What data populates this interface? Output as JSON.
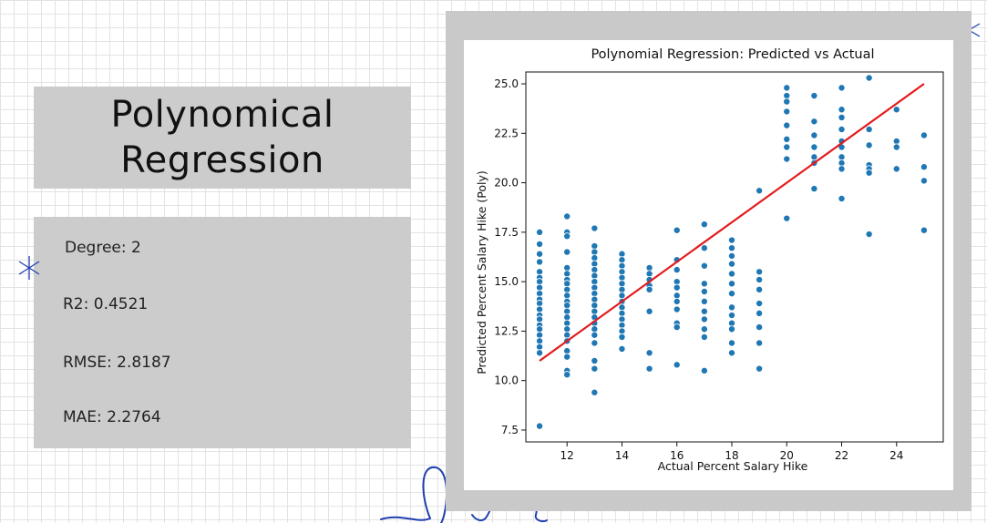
{
  "slide": {
    "title_line1": "Polynomical",
    "title_line2": "Regression"
  },
  "metrics": {
    "degree": "Degree: 2",
    "r2": "R2: 0.4521",
    "rmse": "RMSE: 2.8187",
    "mae": "MAE: 2.2764"
  },
  "colors": {
    "card": "#cccccc",
    "point": "#1f77b4",
    "fit_line": "#e31a1c",
    "accent": "#1f3fae"
  },
  "chart_data": {
    "type": "scatter",
    "title": "Polynomial Regression: Predicted vs Actual",
    "xlabel": "Actual Percent Salary Hike",
    "ylabel": "Predicted Percent Salary Hike (Poly)",
    "xlim": [
      10.5,
      25.7
    ],
    "ylim": [
      6.9,
      25.6
    ],
    "x_ticks": [
      12,
      14,
      16,
      18,
      20,
      22,
      24
    ],
    "y_ticks": [
      7.5,
      10.0,
      12.5,
      15.0,
      17.5,
      20.0,
      22.5,
      25.0
    ],
    "grid": false,
    "reference_line": {
      "x": [
        11,
        25
      ],
      "y": [
        11,
        25
      ]
    },
    "groups": [
      {
        "x": 11,
        "y": [
          17.5,
          16.9,
          16.4,
          16.0,
          15.5,
          15.2,
          15.0,
          14.7,
          14.4,
          14.1,
          13.9,
          13.6,
          13.3,
          13.1,
          12.8,
          12.6,
          12.3,
          12.0,
          11.7,
          11.4,
          7.7
        ]
      },
      {
        "x": 12,
        "y": [
          18.3,
          17.5,
          17.3,
          16.5,
          15.7,
          15.4,
          15.1,
          14.9,
          14.6,
          14.3,
          14.0,
          13.8,
          13.5,
          13.2,
          12.9,
          12.6,
          12.3,
          12.0,
          11.5,
          11.2,
          10.5,
          10.3
        ]
      },
      {
        "x": 13,
        "y": [
          17.7,
          16.8,
          16.5,
          16.2,
          15.9,
          15.6,
          15.3,
          15.0,
          14.7,
          14.4,
          14.1,
          13.8,
          13.5,
          13.2,
          12.9,
          12.6,
          12.3,
          11.9,
          11.0,
          10.6,
          9.4
        ]
      },
      {
        "x": 14,
        "y": [
          16.4,
          16.1,
          15.8,
          15.5,
          15.2,
          14.9,
          14.6,
          14.3,
          14.0,
          13.7,
          13.4,
          13.1,
          12.8,
          12.5,
          12.2,
          11.6
        ]
      },
      {
        "x": 15,
        "y": [
          15.7,
          15.4,
          15.1,
          14.8,
          14.6,
          13.5,
          11.4,
          10.6
        ]
      },
      {
        "x": 16,
        "y": [
          17.6,
          16.1,
          15.6,
          15.0,
          14.7,
          14.3,
          14.0,
          13.6,
          12.9,
          12.7,
          10.8
        ]
      },
      {
        "x": 17,
        "y": [
          17.9,
          16.7,
          15.8,
          14.9,
          14.5,
          14.0,
          13.5,
          13.1,
          12.6,
          12.2,
          10.5
        ]
      },
      {
        "x": 18,
        "y": [
          17.1,
          16.7,
          16.3,
          15.9,
          15.4,
          14.9,
          14.4,
          13.7,
          13.3,
          12.9,
          12.6,
          11.9,
          11.4
        ]
      },
      {
        "x": 19,
        "y": [
          19.6,
          15.5,
          15.1,
          14.6,
          13.9,
          13.4,
          12.7,
          11.9,
          10.6
        ]
      },
      {
        "x": 20,
        "y": [
          24.8,
          24.4,
          24.1,
          23.6,
          22.9,
          22.2,
          21.8,
          21.2,
          18.2
        ]
      },
      {
        "x": 21,
        "y": [
          24.4,
          23.1,
          22.4,
          21.8,
          21.3,
          21.0,
          19.7
        ]
      },
      {
        "x": 22,
        "y": [
          24.8,
          23.7,
          23.3,
          22.7,
          22.1,
          21.8,
          21.3,
          21.0,
          20.7,
          19.2
        ]
      },
      {
        "x": 23,
        "y": [
          25.3,
          22.7,
          21.9,
          20.9,
          20.7,
          20.5,
          17.4
        ]
      },
      {
        "x": 24,
        "y": [
          23.7,
          22.1,
          21.8,
          20.7
        ]
      },
      {
        "x": 25,
        "y": [
          22.4,
          20.8,
          20.1,
          17.6
        ]
      }
    ]
  }
}
